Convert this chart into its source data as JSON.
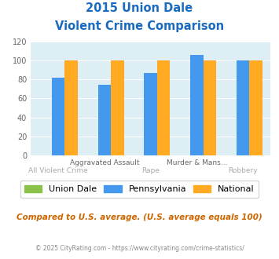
{
  "title_line1": "2015 Union Dale",
  "title_line2": "Violent Crime Comparison",
  "categories": [
    "All Violent Crime",
    "Aggravated Assault",
    "Rape",
    "Murder & Mans...",
    "Robbery"
  ],
  "union_dale": [
    0,
    0,
    0,
    0,
    0
  ],
  "pennsylvania": [
    82,
    74,
    87,
    106,
    100
  ],
  "national": [
    100,
    100,
    100,
    100,
    100
  ],
  "ylim": [
    0,
    120
  ],
  "yticks": [
    0,
    20,
    40,
    60,
    80,
    100,
    120
  ],
  "color_union_dale": "#8bc34a",
  "color_pennsylvania": "#4499ee",
  "color_national": "#ffaa22",
  "title_color": "#1a6bbf",
  "plot_bg_color": "#ddeef4",
  "footer_text": "© 2025 CityRating.com - https://www.cityrating.com/crime-statistics/",
  "compare_text": "Compared to U.S. average. (U.S. average equals 100)",
  "legend_labels": [
    "Union Dale",
    "Pennsylvania",
    "National"
  ],
  "label_row1": [
    "",
    "Aggravated Assault",
    "",
    "Murder & Mans...",
    ""
  ],
  "label_row2": [
    "All Violent Crime",
    "",
    "Rape",
    "",
    "Robbery"
  ]
}
